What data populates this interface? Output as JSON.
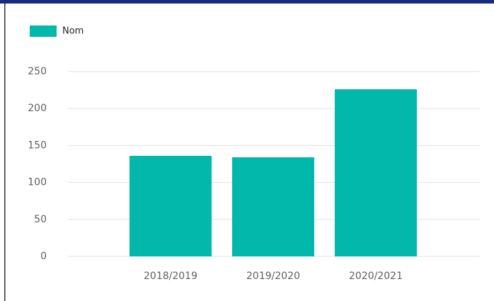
{
  "chart_data": {
    "type": "bar",
    "categories": [
      "2018/2019",
      "2019/2020",
      "2020/2021"
    ],
    "series": [
      {
        "name": "Nom",
        "color": "#01b8aa",
        "values": [
          136,
          134,
          226
        ]
      }
    ],
    "ylim": [
      0,
      250
    ],
    "yticks": [
      0,
      50,
      100,
      150,
      200,
      250
    ],
    "grid": true,
    "legend": "top-left"
  }
}
